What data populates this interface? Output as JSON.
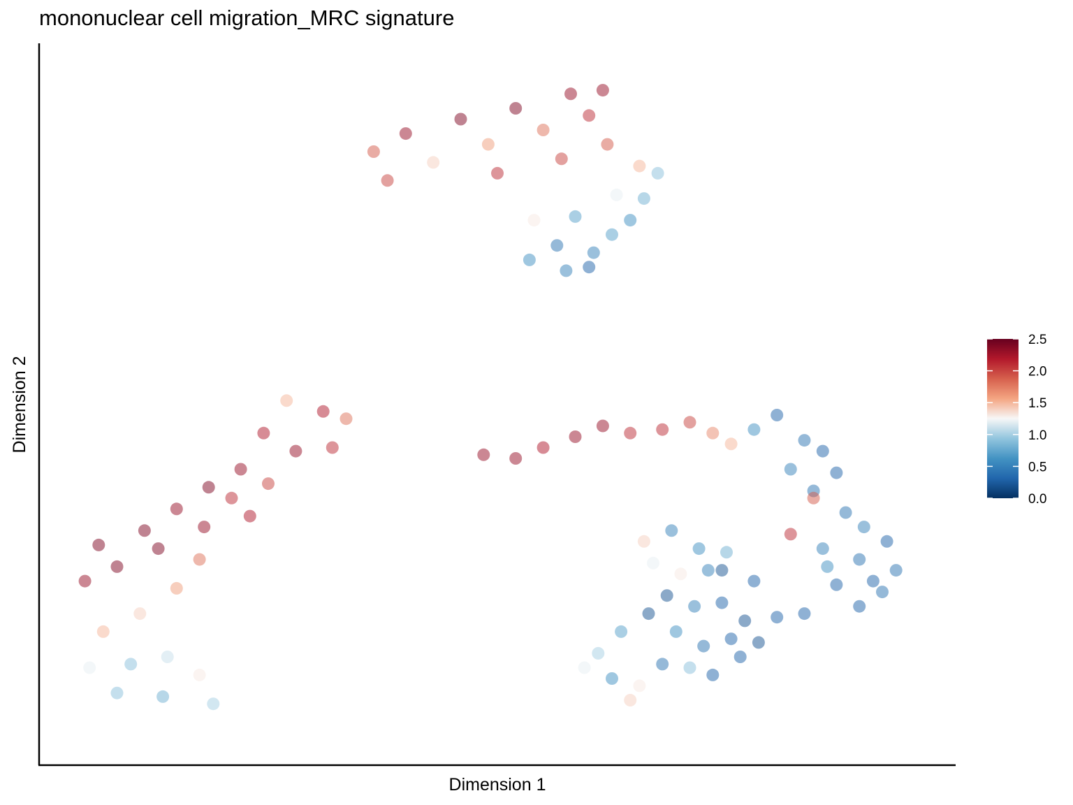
{
  "chart_data": {
    "type": "scatter",
    "title": "mononuclear cell migration_MRC signature",
    "xlabel": "Dimension 1",
    "ylabel": "Dimension 2",
    "xlim": [
      0,
      100
    ],
    "ylim": [
      0,
      100
    ],
    "x_ticks_shown": false,
    "y_ticks_shown": false,
    "grid": false,
    "point_alpha": 0.5,
    "color_scale": {
      "name": "RdBu (reversed)",
      "min": 0.0,
      "max": 2.5,
      "ticks": [
        {
          "value": 0.0,
          "label": "0.0"
        },
        {
          "value": 0.5,
          "label": "0.5"
        },
        {
          "value": 1.0,
          "label": "1.0"
        },
        {
          "value": 1.5,
          "label": "1.5"
        },
        {
          "value": 2.0,
          "label": "2.0"
        },
        {
          "value": 2.5,
          "label": "2.5"
        }
      ],
      "stops": [
        "#053061",
        "#2166ac",
        "#4393c3",
        "#92c5de",
        "#f7f7f7",
        "#f4a582",
        "#d6604d",
        "#b2182b",
        "#67001f"
      ],
      "legend_position": "right"
    },
    "clusters": [
      {
        "id": "top",
        "points": [
          [
            36.5,
            85
          ],
          [
            40,
            87.5
          ],
          [
            46,
            89.5
          ],
          [
            52,
            91
          ],
          [
            58,
            93
          ],
          [
            61.5,
            93.5
          ],
          [
            60,
            90
          ],
          [
            55,
            88
          ],
          [
            49,
            86
          ],
          [
            43,
            83.5
          ],
          [
            38,
            81
          ],
          [
            50,
            82
          ],
          [
            57,
            84
          ],
          [
            62,
            86
          ],
          [
            65.5,
            83
          ],
          [
            67.5,
            82
          ],
          [
            66,
            78.5
          ],
          [
            63,
            79
          ],
          [
            58.5,
            76
          ],
          [
            54,
            75.5
          ],
          [
            56.5,
            72
          ],
          [
            60.5,
            71
          ],
          [
            62.5,
            73.5
          ],
          [
            64.5,
            75.5
          ],
          [
            57.5,
            68.5
          ],
          [
            53.5,
            70
          ],
          [
            60,
            69
          ]
        ],
        "values": [
          1.9,
          2.3,
          2.4,
          2.4,
          2.3,
          2.3,
          2.1,
          1.8,
          1.6,
          1.4,
          2.0,
          2.1,
          2.0,
          1.9,
          1.5,
          0.9,
          0.8,
          1.2,
          0.7,
          1.3,
          0.4,
          0.5,
          0.7,
          0.6,
          0.5,
          0.6,
          0.3
        ]
      },
      {
        "id": "left",
        "points": [
          [
            27,
            50.5
          ],
          [
            31,
            49
          ],
          [
            33.5,
            48
          ],
          [
            32,
            44
          ],
          [
            28,
            43.5
          ],
          [
            24.5,
            46
          ],
          [
            22,
            41
          ],
          [
            18.5,
            38.5
          ],
          [
            15,
            35.5
          ],
          [
            11.5,
            32.5
          ],
          [
            6.5,
            30.5
          ],
          [
            5,
            25.5
          ],
          [
            8.5,
            27.5
          ],
          [
            13,
            30
          ],
          [
            18,
            33
          ],
          [
            21,
            37
          ],
          [
            25,
            39
          ],
          [
            23,
            34.5
          ],
          [
            17.5,
            28.5
          ],
          [
            15,
            24.5
          ],
          [
            11,
            21
          ],
          [
            7,
            18.5
          ],
          [
            5.5,
            13.5
          ],
          [
            10,
            14
          ],
          [
            14,
            15
          ],
          [
            17.5,
            12.5
          ],
          [
            13.5,
            9.5
          ],
          [
            8.5,
            10
          ],
          [
            19,
            8.5
          ]
        ],
        "values": [
          1.5,
          2.2,
          1.8,
          2.1,
          2.3,
          2.2,
          2.3,
          2.4,
          2.3,
          2.4,
          2.4,
          2.3,
          2.4,
          2.4,
          2.3,
          2.1,
          2.0,
          2.2,
          1.8,
          1.6,
          1.4,
          1.5,
          1.2,
          0.9,
          1.1,
          1.3,
          0.8,
          0.9,
          1.0
        ]
      },
      {
        "id": "middle",
        "points": [
          [
            48.5,
            43
          ],
          [
            52,
            42.5
          ],
          [
            55,
            44
          ],
          [
            58.5,
            45.5
          ],
          [
            61.5,
            47
          ],
          [
            64.5,
            46
          ],
          [
            68,
            46.5
          ],
          [
            71,
            47.5
          ],
          [
            73.5,
            46
          ],
          [
            75.5,
            44.5
          ],
          [
            78,
            46.5
          ],
          [
            80.5,
            48.5
          ],
          [
            83.5,
            45
          ],
          [
            85.5,
            43.5
          ],
          [
            87,
            40.5
          ],
          [
            84.5,
            38
          ],
          [
            82,
            41
          ]
        ],
        "values": [
          2.3,
          2.3,
          2.2,
          2.3,
          2.3,
          2.1,
          2.1,
          2.0,
          1.7,
          1.5,
          0.6,
          0.3,
          0.4,
          0.3,
          0.3,
          0.4,
          0.5
        ]
      },
      {
        "id": "right",
        "points": [
          [
            88,
            35
          ],
          [
            90,
            33
          ],
          [
            92.5,
            31
          ],
          [
            93.5,
            27
          ],
          [
            92,
            24
          ],
          [
            89.5,
            22
          ],
          [
            87,
            25
          ],
          [
            85.5,
            30
          ],
          [
            86,
            27.5
          ],
          [
            89.5,
            28.5
          ],
          [
            91,
            25.5
          ],
          [
            84.5,
            37
          ],
          [
            82,
            32
          ],
          [
            78,
            25.5
          ],
          [
            74.5,
            27
          ]
        ],
        "values": [
          0.4,
          0.5,
          0.3,
          0.4,
          0.4,
          0.3,
          0.3,
          0.5,
          0.6,
          0.4,
          0.3,
          1.9,
          2.1,
          0.3,
          0.2
        ]
      },
      {
        "id": "bottom-right",
        "points": [
          [
            66,
            31
          ],
          [
            69,
            32.5
          ],
          [
            72,
            30
          ],
          [
            75,
            29.5
          ],
          [
            73,
            27
          ],
          [
            70,
            26.5
          ],
          [
            67,
            28
          ],
          [
            68.5,
            23.5
          ],
          [
            71.5,
            22
          ],
          [
            74.5,
            22.5
          ],
          [
            77,
            20
          ],
          [
            75.5,
            17.5
          ],
          [
            72.5,
            16.5
          ],
          [
            69.5,
            18.5
          ],
          [
            66.5,
            21
          ],
          [
            63.5,
            18.5
          ],
          [
            61,
            15.5
          ],
          [
            59.5,
            13.5
          ],
          [
            62.5,
            12
          ],
          [
            65.5,
            11
          ],
          [
            68,
            14
          ],
          [
            71,
            13.5
          ],
          [
            73.5,
            12.5
          ],
          [
            76.5,
            15
          ],
          [
            78.5,
            17
          ],
          [
            80.5,
            20.5
          ],
          [
            83.5,
            21
          ],
          [
            64.5,
            9
          ]
        ],
        "values": [
          1.4,
          0.5,
          0.6,
          0.8,
          0.5,
          1.3,
          1.2,
          0.2,
          0.5,
          0.3,
          0.2,
          0.3,
          0.4,
          0.6,
          0.2,
          0.7,
          1.0,
          1.2,
          0.6,
          1.3,
          0.4,
          0.9,
          0.3,
          0.3,
          0.2,
          0.3,
          0.3,
          1.4
        ]
      }
    ]
  }
}
